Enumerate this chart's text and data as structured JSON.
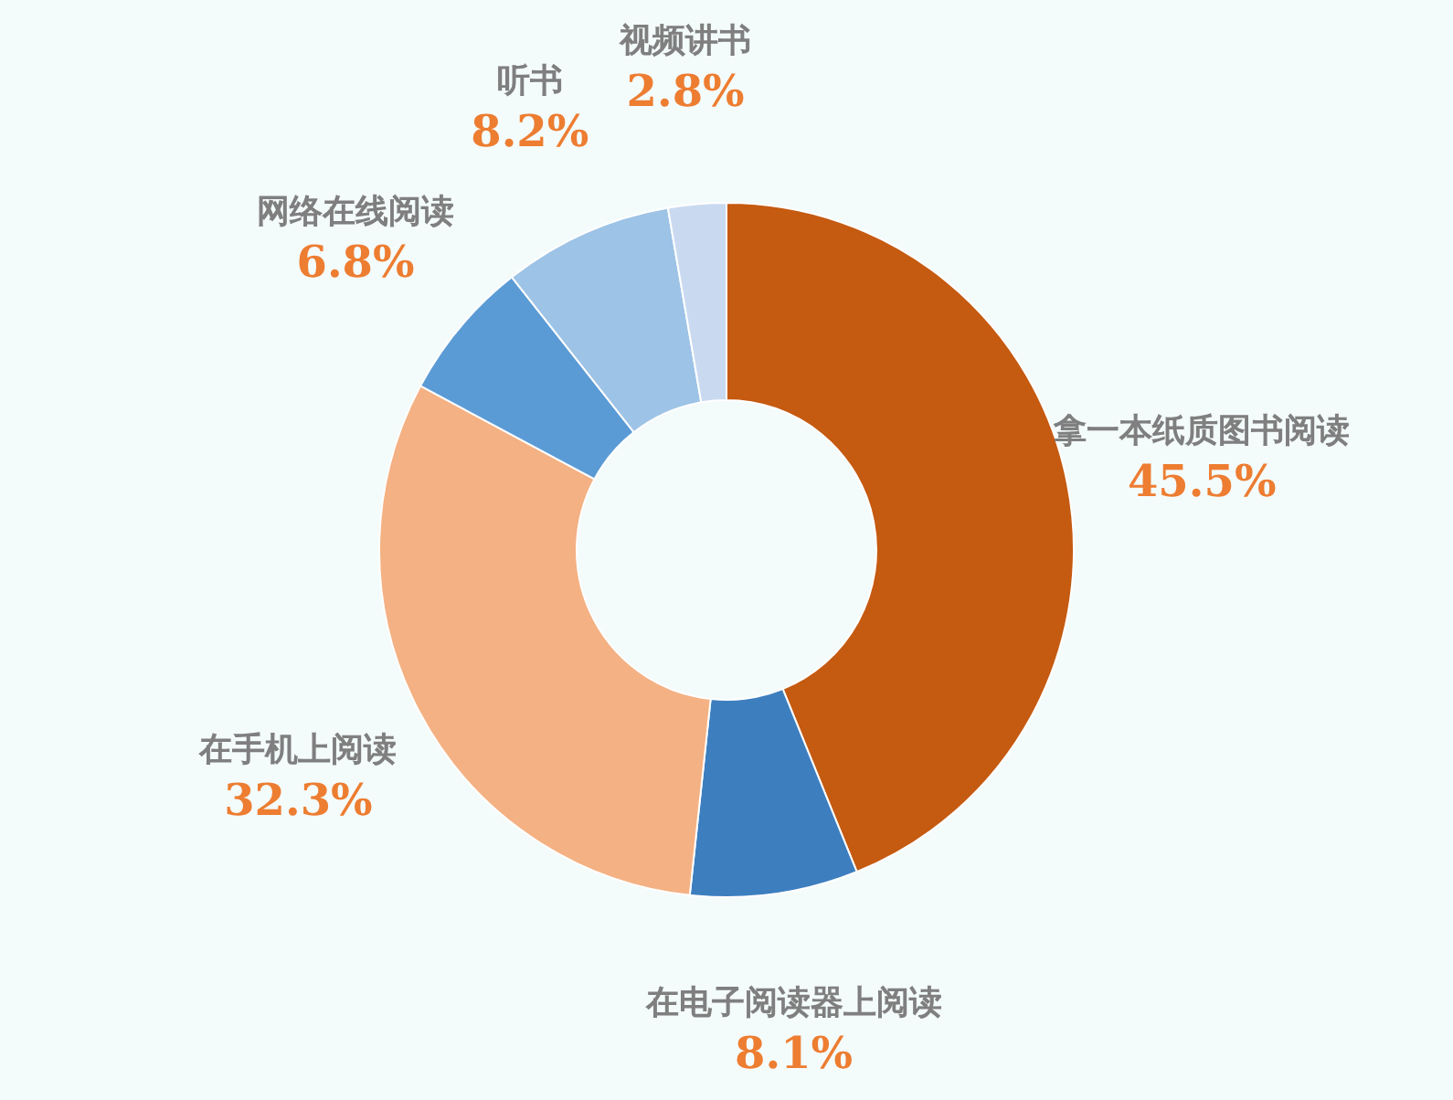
{
  "chart_data": {
    "type": "donut",
    "categories": [
      "拿一本纸质图书阅读",
      "在电子阅读器上阅读",
      "在手机上阅读",
      "网络在线阅读",
      "听书",
      "视频讲书"
    ],
    "values": [
      45.5,
      8.1,
      32.3,
      6.8,
      8.2,
      2.8
    ],
    "colors": [
      "#c55a11",
      "#3d7ebf",
      "#f4b183",
      "#5b9bd5",
      "#9dc3e6",
      "#c9daf0"
    ],
    "value_labels": [
      "45.5%",
      "8.1%",
      "32.3%",
      "6.8%",
      "8.2%",
      "2.8%"
    ],
    "legend": false
  }
}
